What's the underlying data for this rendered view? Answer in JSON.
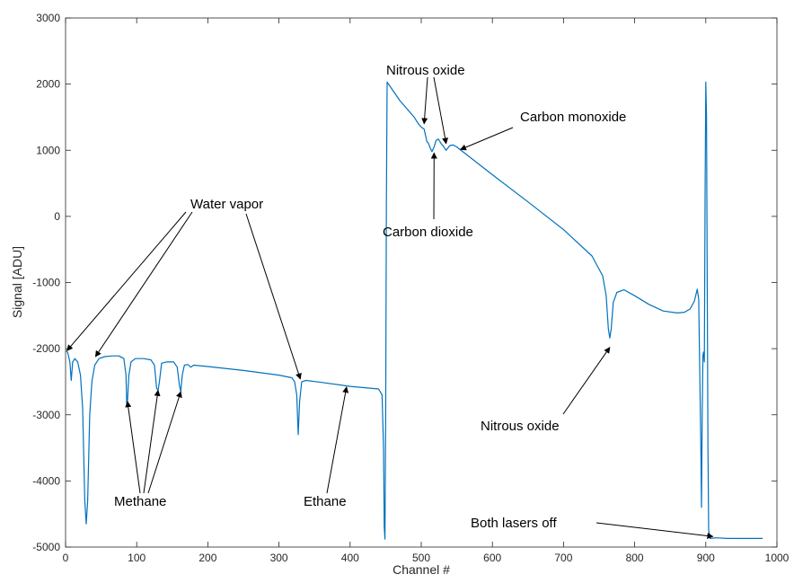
{
  "chart_data": {
    "type": "line",
    "title": "",
    "xlabel": "Channel #",
    "ylabel": "Signal [ADU]",
    "xlim": [
      0,
      1000
    ],
    "ylim": [
      -5000,
      3000
    ],
    "grid": false,
    "x_ticks": [
      0,
      100,
      200,
      300,
      400,
      500,
      600,
      700,
      800,
      900,
      1000
    ],
    "y_ticks": [
      -5000,
      -4000,
      -3000,
      -2000,
      -1000,
      0,
      1000,
      2000,
      3000
    ],
    "line_color": "#0072bd",
    "series": [
      {
        "points": [
          [
            1,
            -2030
          ],
          [
            3,
            -2060
          ],
          [
            6,
            -2200
          ],
          [
            8,
            -2480
          ],
          [
            10,
            -2200
          ],
          [
            13,
            -2150
          ],
          [
            17,
            -2200
          ],
          [
            21,
            -2400
          ],
          [
            24,
            -2900
          ],
          [
            27,
            -4300
          ],
          [
            29,
            -4650
          ],
          [
            31,
            -4300
          ],
          [
            34,
            -3000
          ],
          [
            37,
            -2500
          ],
          [
            41,
            -2250
          ],
          [
            47,
            -2150
          ],
          [
            55,
            -2120
          ],
          [
            65,
            -2110
          ],
          [
            75,
            -2110
          ],
          [
            82,
            -2150
          ],
          [
            85,
            -2400
          ],
          [
            86,
            -2850
          ],
          [
            87,
            -2800
          ],
          [
            89,
            -2400
          ],
          [
            92,
            -2200
          ],
          [
            98,
            -2150
          ],
          [
            110,
            -2150
          ],
          [
            120,
            -2170
          ],
          [
            125,
            -2250
          ],
          [
            128,
            -2600
          ],
          [
            130,
            -2630
          ],
          [
            132,
            -2500
          ],
          [
            135,
            -2220
          ],
          [
            142,
            -2200
          ],
          [
            152,
            -2200
          ],
          [
            157,
            -2280
          ],
          [
            160,
            -2550
          ],
          [
            162,
            -2650
          ],
          [
            164,
            -2400
          ],
          [
            167,
            -2250
          ],
          [
            172,
            -2240
          ],
          [
            176,
            -2280
          ],
          [
            180,
            -2250
          ],
          [
            200,
            -2270
          ],
          [
            250,
            -2330
          ],
          [
            300,
            -2400
          ],
          [
            318,
            -2440
          ],
          [
            322,
            -2500
          ],
          [
            325,
            -2700
          ],
          [
            327,
            -3300
          ],
          [
            329,
            -2800
          ],
          [
            332,
            -2500
          ],
          [
            338,
            -2480
          ],
          [
            360,
            -2510
          ],
          [
            400,
            -2570
          ],
          [
            440,
            -2610
          ],
          [
            445,
            -2700
          ],
          [
            447,
            -3500
          ],
          [
            448,
            -4700
          ],
          [
            449,
            -4880
          ],
          [
            450,
            -3000
          ],
          [
            451,
            200
          ],
          [
            452,
            2030
          ],
          [
            470,
            1750
          ],
          [
            490,
            1500
          ],
          [
            496,
            1400
          ],
          [
            500,
            1350
          ],
          [
            504,
            1320
          ],
          [
            508,
            1130
          ],
          [
            510,
            1110
          ],
          [
            512,
            1050
          ],
          [
            515,
            980
          ],
          [
            518,
            1050
          ],
          [
            521,
            1150
          ],
          [
            524,
            1170
          ],
          [
            528,
            1100
          ],
          [
            531,
            1060
          ],
          [
            535,
            1000
          ],
          [
            540,
            1070
          ],
          [
            545,
            1080
          ],
          [
            550,
            1050
          ],
          [
            600,
            630
          ],
          [
            650,
            220
          ],
          [
            700,
            -200
          ],
          [
            740,
            -600
          ],
          [
            755,
            -900
          ],
          [
            760,
            -1200
          ],
          [
            763,
            -1700
          ],
          [
            765,
            -1840
          ],
          [
            767,
            -1700
          ],
          [
            770,
            -1300
          ],
          [
            775,
            -1150
          ],
          [
            785,
            -1110
          ],
          [
            800,
            -1200
          ],
          [
            820,
            -1330
          ],
          [
            840,
            -1430
          ],
          [
            860,
            -1460
          ],
          [
            870,
            -1450
          ],
          [
            878,
            -1400
          ],
          [
            884,
            -1280
          ],
          [
            888,
            -1100
          ],
          [
            890,
            -1250
          ],
          [
            891,
            -2000
          ],
          [
            893,
            -3500
          ],
          [
            894,
            -4400
          ],
          [
            895,
            -3000
          ],
          [
            896,
            -2100
          ],
          [
            897,
            -2050
          ],
          [
            898,
            -2200
          ],
          [
            899,
            300
          ],
          [
            900,
            2030
          ],
          [
            901,
            1500
          ],
          [
            902,
            -1000
          ],
          [
            903,
            -3500
          ],
          [
            904,
            -4750
          ],
          [
            906,
            -4870
          ],
          [
            915,
            -4860
          ],
          [
            930,
            -4870
          ],
          [
            980,
            -4870
          ]
        ]
      }
    ],
    "annotations": [
      {
        "label": "Water vapor",
        "targets": [
          [
            2,
            -2030
          ],
          [
            42,
            -2120
          ],
          [
            330,
            -2460
          ]
        ]
      },
      {
        "label": "Methane",
        "targets": [
          [
            87,
            -2800
          ],
          [
            130,
            -2630
          ],
          [
            162,
            -2650
          ]
        ]
      },
      {
        "label": "Ethane",
        "targets": [
          [
            395,
            -2580
          ]
        ]
      },
      {
        "label": "Nitrous oxide",
        "targets": [
          [
            504,
            1400
          ],
          [
            535,
            1100
          ]
        ]
      },
      {
        "label": "Carbon monoxide",
        "targets": [
          [
            555,
            1010
          ]
        ]
      },
      {
        "label": "Carbon dioxide",
        "targets": [
          [
            518,
            960
          ]
        ]
      },
      {
        "label": "Nitrous oxide",
        "targets": [
          [
            765,
            -1980
          ]
        ]
      },
      {
        "label": "Both lasers off",
        "targets": [
          [
            910,
            -4840
          ]
        ]
      }
    ]
  }
}
